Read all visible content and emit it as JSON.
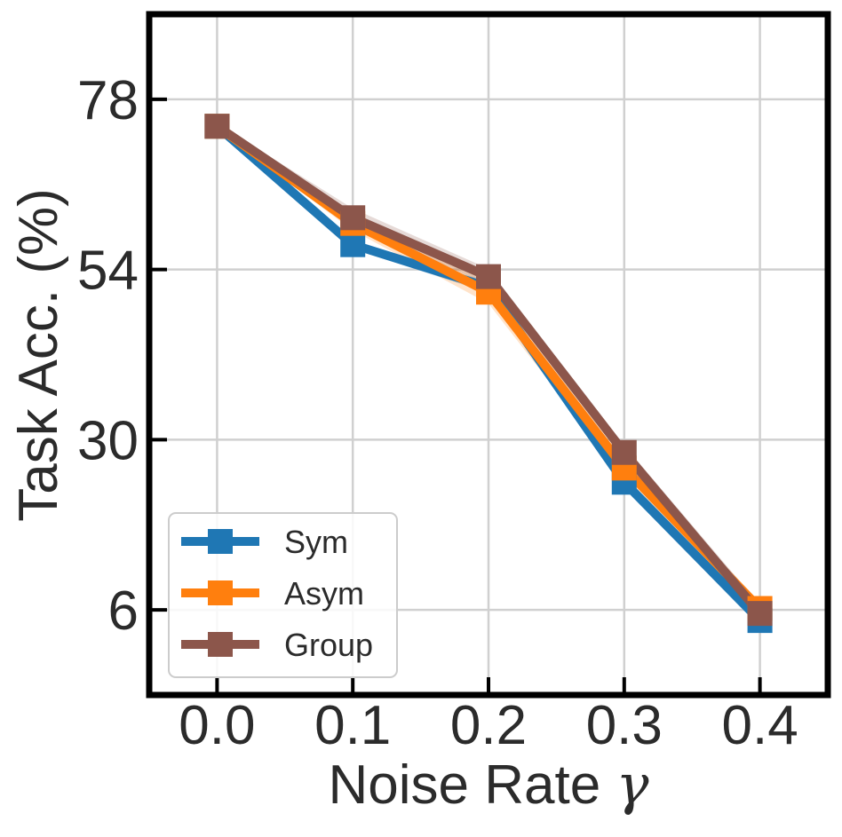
{
  "chart_data": {
    "type": "line",
    "title": "",
    "xlabel": "Noise Rate",
    "xlabel_symbol": "γ",
    "ylabel": "Task Acc. (%)",
    "x": [
      0.0,
      0.1,
      0.2,
      0.3,
      0.4
    ],
    "x_tick_labels": [
      "0.0",
      "0.1",
      "0.2",
      "0.3",
      "0.4"
    ],
    "y_ticks": [
      6,
      30,
      54,
      78
    ],
    "y_tick_labels": [
      "6",
      "30",
      "54",
      "78"
    ],
    "xlim": [
      -0.05,
      0.45
    ],
    "ylim": [
      -6,
      90
    ],
    "grid": true,
    "legend_position": "lower-left",
    "series": [
      {
        "name": "Sym",
        "color": "#1f77b4",
        "values": [
          74.2,
          57.5,
          51.5,
          24.0,
          4.5
        ],
        "band": [
          0.4,
          0.6,
          0.8,
          0.8,
          0.6
        ]
      },
      {
        "name": "Asym",
        "color": "#ff7f0e",
        "values": [
          74.2,
          60.5,
          50.8,
          26.0,
          6.2
        ],
        "band": [
          0.4,
          1.0,
          1.6,
          1.4,
          0.9
        ]
      },
      {
        "name": "Group",
        "color": "#8c564b",
        "values": [
          74.2,
          61.3,
          53.0,
          28.2,
          5.5
        ],
        "band": [
          0.4,
          1.3,
          1.1,
          1.0,
          1.2
        ]
      }
    ]
  }
}
